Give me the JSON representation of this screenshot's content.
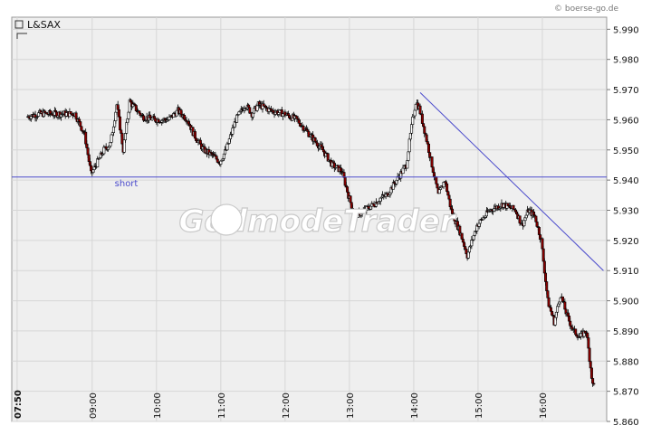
{
  "chart_data": {
    "type": "candlestick",
    "title": "L&SAX",
    "credit": "© boerse-go.de",
    "watermark": "GodmodeTrader",
    "x_tick_labels": [
      "07:50",
      "09:00",
      "10:00",
      "11:00",
      "12:00",
      "13:00",
      "14:00",
      "15:00",
      "16:00"
    ],
    "x_tick_hours": [
      7.833,
      9,
      10,
      11,
      12,
      13,
      14,
      15,
      16
    ],
    "xlim": [
      7.75,
      17.0
    ],
    "y_tick_labels": [
      "5.860",
      "5.870",
      "5.880",
      "5.890",
      "5.900",
      "5.910",
      "5.920",
      "5.930",
      "5.940",
      "5.950",
      "5.960",
      "5.970",
      "5.980",
      "5.990"
    ],
    "ylim": [
      5860,
      5994
    ],
    "grid": true,
    "series_anchors": {
      "time_hours": [
        8.0,
        8.2,
        8.5,
        8.75,
        8.9,
        9.0,
        9.2,
        9.3,
        9.4,
        9.5,
        9.6,
        9.8,
        10.0,
        10.2,
        10.35,
        10.5,
        10.6,
        10.75,
        10.9,
        11.0,
        11.1,
        11.25,
        11.4,
        11.5,
        11.6,
        11.8,
        12.0,
        12.2,
        12.4,
        12.6,
        12.75,
        12.9,
        13.0,
        13.1,
        13.25,
        13.4,
        13.5,
        13.6,
        13.75,
        13.9,
        14.0,
        14.05,
        14.1,
        14.2,
        14.3,
        14.4,
        14.5,
        14.6,
        14.75,
        14.85,
        15.0,
        15.2,
        15.4,
        15.6,
        15.7,
        15.8,
        15.9,
        16.0,
        16.1,
        16.2,
        16.3,
        16.4,
        16.5,
        16.6,
        16.7,
        16.8
      ],
      "price": [
        5961,
        5962,
        5962,
        5962,
        5955,
        5942,
        5950,
        5952,
        5965,
        5950,
        5966,
        5961,
        5960,
        5960,
        5963,
        5960,
        5955,
        5950,
        5948,
        5946,
        5950,
        5960,
        5965,
        5962,
        5965,
        5963,
        5962,
        5960,
        5955,
        5950,
        5945,
        5943,
        5935,
        5928,
        5930,
        5932,
        5934,
        5935,
        5940,
        5945,
        5960,
        5966,
        5964,
        5955,
        5945,
        5935,
        5940,
        5930,
        5922,
        5915,
        5925,
        5930,
        5932,
        5930,
        5925,
        5930,
        5928,
        5920,
        5900,
        5893,
        5902,
        5895,
        5890,
        5888,
        5890,
        5872
      ]
    },
    "lines": [
      {
        "name": "short",
        "kind": "horizontal",
        "y": 5941
      },
      {
        "name": "trendline",
        "kind": "segment",
        "from": {
          "x": 14.1,
          "y": 5969
        },
        "to": {
          "x": 16.95,
          "y": 5910
        }
      }
    ]
  }
}
